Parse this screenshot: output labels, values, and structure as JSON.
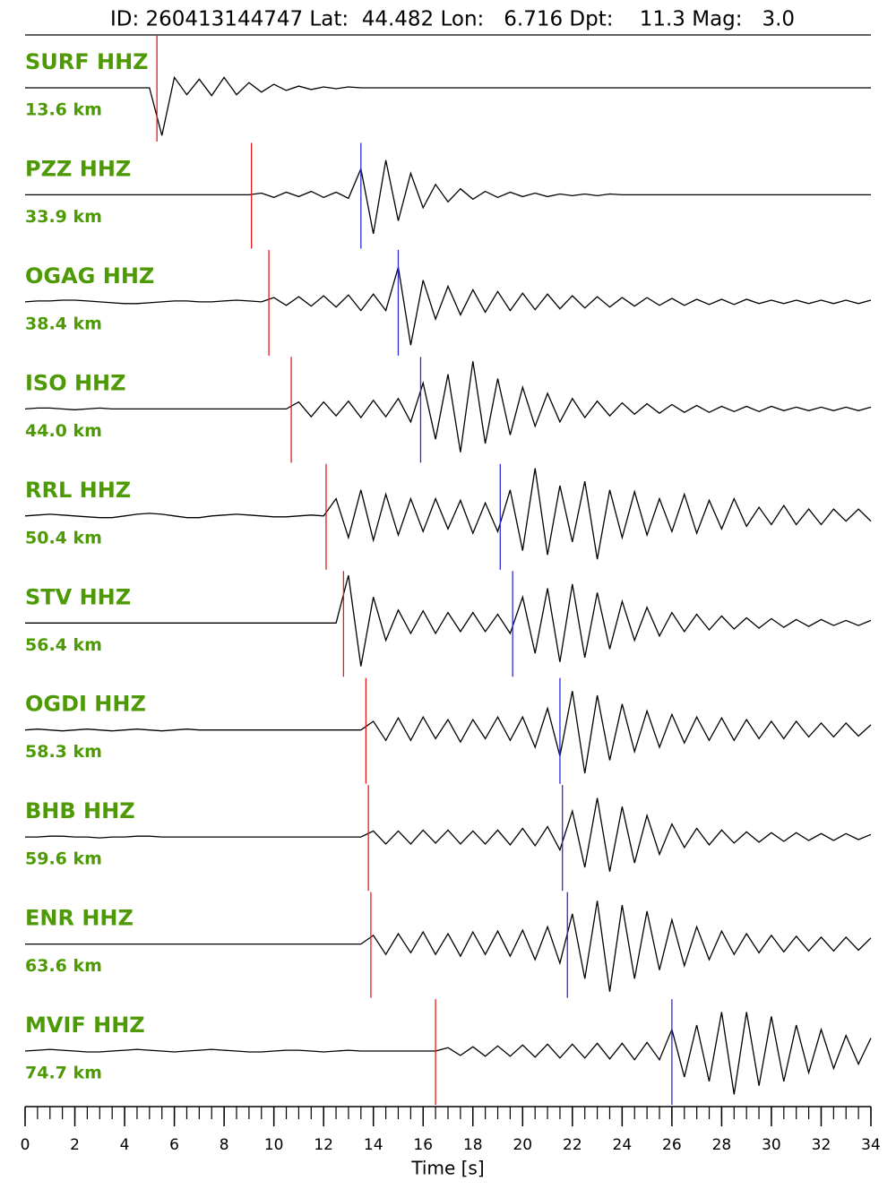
{
  "chart_data": {
    "type": "seismogram",
    "title": "ID: 260413144747 Lat:  44.482 Lon:   6.716 Dpt:    11.3 Mag:   3.0",
    "xlabel": "Time [s]",
    "xlim": [
      0,
      34
    ],
    "xticks": [
      0,
      2,
      4,
      6,
      8,
      10,
      12,
      14,
      16,
      18,
      20,
      22,
      24,
      26,
      28,
      30,
      32,
      34
    ],
    "xminorticks": [
      0,
      0.5,
      1,
      1.5,
      2,
      2.5,
      3,
      3.5,
      4,
      4.5,
      5,
      5.5,
      6,
      6.5,
      7,
      7.5,
      8,
      8.5,
      9,
      9.5,
      10,
      10.5,
      11,
      11.5,
      12,
      12.5,
      13,
      13.5,
      14,
      14.5,
      15,
      15.5,
      16,
      16.5,
      17,
      17.5,
      18,
      18.5,
      19,
      19.5,
      20,
      20.5,
      21,
      21.5,
      22,
      22.5,
      23,
      23.5,
      24,
      24.5,
      25,
      25.5,
      26,
      26.5,
      27,
      27.5,
      28,
      28.5,
      29,
      29.5,
      30,
      30.5,
      31,
      31.5,
      32,
      32.5,
      33,
      33.5,
      34
    ],
    "x": [
      0,
      0.5,
      1,
      1.5,
      2,
      2.5,
      3,
      3.5,
      4,
      4.5,
      5,
      5.5,
      6,
      6.5,
      7,
      7.5,
      8,
      8.5,
      9,
      9.5,
      10,
      10.5,
      11,
      11.5,
      12,
      12.5,
      13,
      13.5,
      14,
      14.5,
      15,
      15.5,
      16,
      16.5,
      17,
      17.5,
      18,
      18.5,
      19,
      19.5,
      20,
      20.5,
      21,
      21.5,
      22,
      22.5,
      23,
      23.5,
      24,
      24.5,
      25,
      25.5,
      26,
      26.5,
      27,
      27.5,
      28,
      28.5,
      29,
      29.5,
      30,
      30.5,
      31,
      31.5,
      32,
      32.5,
      33,
      33.5,
      34
    ],
    "ylim": [
      -60,
      60
    ],
    "trace_color": "#000000",
    "label_color": "#4e9a06",
    "p_color": "#e41a1c",
    "s_color": "#2b2bd6",
    "series": [
      {
        "name": "SURF HHZ",
        "distance": "13.6 km",
        "p_pick": 5.3,
        "values": [
          0,
          0,
          0,
          0,
          0,
          0,
          0,
          0,
          0,
          0,
          0,
          -55,
          12,
          -8,
          10,
          -9,
          12,
          -8,
          6,
          -5,
          4,
          -3,
          2,
          -2,
          1,
          -1,
          1,
          0,
          0,
          0,
          0,
          0,
          0,
          0,
          0,
          0,
          0,
          0,
          0,
          0,
          0,
          0,
          0,
          0,
          0,
          0,
          0,
          0,
          0,
          0,
          0,
          0,
          0,
          0,
          0,
          0,
          0,
          0,
          0,
          0,
          0,
          0,
          0,
          0,
          0,
          0,
          0,
          0,
          0
        ]
      },
      {
        "name": "PZZ HHZ",
        "distance": "33.9 km",
        "p_pick": 9.1,
        "s_pick": 13.5,
        "values": [
          0,
          0,
          0,
          0,
          0,
          0,
          0,
          0,
          0,
          0,
          0,
          0,
          0,
          0,
          0,
          0,
          0,
          0,
          0,
          2,
          -3,
          3,
          -2,
          4,
          -3,
          3,
          -4,
          30,
          -45,
          40,
          -30,
          25,
          -15,
          12,
          -8,
          7,
          -5,
          4,
          -3,
          3,
          -2,
          2,
          -2,
          1,
          -1,
          1,
          -1,
          1,
          0,
          0,
          0,
          0,
          0,
          0,
          0,
          0,
          0,
          0,
          0,
          0,
          0,
          0,
          0,
          0,
          0,
          0,
          0,
          0,
          0
        ]
      },
      {
        "name": "OGAG HHZ",
        "distance": "38.4 km",
        "p_pick": 9.8,
        "s_pick": 15.0,
        "values": [
          0,
          1,
          1,
          2,
          2,
          1,
          0,
          -1,
          -2,
          -2,
          -1,
          0,
          1,
          1,
          0,
          0,
          1,
          2,
          1,
          0,
          5,
          -4,
          6,
          -5,
          7,
          -6,
          8,
          -10,
          9,
          -10,
          40,
          -50,
          25,
          -20,
          18,
          -15,
          14,
          -12,
          12,
          -10,
          10,
          -9,
          9,
          -8,
          7,
          -7,
          6,
          -6,
          5,
          -5,
          5,
          -4,
          4,
          -4,
          3,
          -3,
          3,
          -3,
          3,
          -2,
          2,
          -2,
          2,
          -2,
          2,
          -2,
          2,
          -2,
          2
        ]
      },
      {
        "name": "ISO HHZ",
        "distance": "44.0 km",
        "p_pick": 10.7,
        "s_pick": 15.9,
        "values": [
          0,
          1,
          1,
          0,
          -1,
          0,
          1,
          0,
          0,
          0,
          0,
          0,
          0,
          0,
          0,
          0,
          0,
          0,
          0,
          0,
          0,
          0,
          8,
          -9,
          8,
          -8,
          9,
          -10,
          10,
          -9,
          12,
          -15,
          30,
          -35,
          40,
          -50,
          55,
          -40,
          35,
          -30,
          25,
          -20,
          18,
          -15,
          12,
          -10,
          9,
          -8,
          7,
          -6,
          6,
          -5,
          5,
          -4,
          4,
          -4,
          3,
          -3,
          3,
          -3,
          3,
          -2,
          2,
          -2,
          2,
          -2,
          2,
          -2,
          2
        ]
      },
      {
        "name": "RRL HHZ",
        "distance": "50.4 km",
        "p_pick": 12.1,
        "s_pick": 19.1,
        "values": [
          0,
          1,
          2,
          1,
          0,
          -1,
          -2,
          -2,
          0,
          2,
          3,
          2,
          0,
          -2,
          -2,
          0,
          1,
          2,
          1,
          0,
          -1,
          -1,
          0,
          1,
          0,
          20,
          -25,
          30,
          -28,
          25,
          -22,
          20,
          -18,
          20,
          -15,
          18,
          -20,
          15,
          -18,
          30,
          -40,
          55,
          -45,
          35,
          -30,
          40,
          -50,
          30,
          -25,
          28,
          -22,
          20,
          -18,
          25,
          -20,
          18,
          -15,
          20,
          -12,
          10,
          -10,
          12,
          -10,
          8,
          -10,
          8,
          -6,
          8,
          -6
        ]
      },
      {
        "name": "STV HHZ",
        "distance": "56.4 km",
        "p_pick": 12.8,
        "s_pick": 19.6,
        "values": [
          0,
          0,
          0,
          0,
          0,
          0,
          0,
          0,
          0,
          0,
          0,
          0,
          0,
          0,
          0,
          0,
          0,
          0,
          0,
          0,
          0,
          0,
          0,
          0,
          0,
          0,
          55,
          -50,
          30,
          -20,
          15,
          -12,
          14,
          -12,
          12,
          -10,
          12,
          -10,
          10,
          -12,
          30,
          -35,
          40,
          -45,
          45,
          -40,
          35,
          -30,
          25,
          -20,
          18,
          -15,
          12,
          -10,
          10,
          -8,
          8,
          -7,
          6,
          -6,
          5,
          -5,
          4,
          -4,
          4,
          -3,
          3,
          -3,
          3
        ]
      },
      {
        "name": "OGDI HHZ",
        "distance": "58.3 km",
        "p_pick": 13.7,
        "s_pick": 21.5,
        "values": [
          0,
          1,
          0,
          -1,
          0,
          1,
          0,
          -1,
          0,
          1,
          0,
          -1,
          0,
          1,
          0,
          0,
          0,
          0,
          0,
          0,
          0,
          0,
          0,
          0,
          0,
          0,
          0,
          0,
          10,
          -12,
          14,
          -12,
          15,
          -10,
          12,
          -14,
          12,
          -10,
          15,
          -12,
          15,
          -20,
          25,
          -30,
          45,
          -50,
          40,
          -35,
          30,
          -25,
          22,
          -20,
          18,
          -15,
          15,
          -12,
          14,
          -12,
          12,
          -10,
          10,
          -10,
          10,
          -8,
          8,
          -8,
          8,
          -7,
          6
        ]
      },
      {
        "name": "BHB HHZ",
        "distance": "59.6 km",
        "p_pick": 13.8,
        "s_pick": 21.6,
        "values": [
          0,
          0,
          1,
          1,
          0,
          0,
          -1,
          0,
          0,
          1,
          1,
          0,
          0,
          0,
          0,
          0,
          0,
          0,
          0,
          0,
          0,
          0,
          0,
          0,
          0,
          0,
          0,
          0,
          7,
          -8,
          7,
          -8,
          8,
          -7,
          8,
          -8,
          7,
          -8,
          8,
          -9,
          10,
          -10,
          12,
          -15,
          30,
          -35,
          45,
          -40,
          35,
          -30,
          25,
          -20,
          15,
          -12,
          10,
          -9,
          8,
          -7,
          6,
          -6,
          5,
          -5,
          5,
          -4,
          4,
          -4,
          4,
          -3,
          3
        ]
      },
      {
        "name": "ENR HHZ",
        "distance": "63.6 km",
        "p_pick": 13.9,
        "s_pick": 21.8,
        "values": [
          0,
          0,
          0,
          0,
          0,
          0,
          0,
          0,
          0,
          0,
          0,
          0,
          0,
          0,
          0,
          0,
          0,
          0,
          0,
          0,
          0,
          0,
          0,
          0,
          0,
          0,
          0,
          0,
          10,
          -12,
          12,
          -10,
          14,
          -12,
          12,
          -14,
          14,
          -12,
          15,
          -14,
          16,
          -18,
          20,
          -22,
          35,
          -40,
          50,
          -55,
          45,
          -40,
          38,
          -30,
          28,
          -25,
          20,
          -18,
          15,
          -12,
          12,
          -10,
          10,
          -9,
          9,
          -8,
          8,
          -8,
          8,
          -7,
          7
        ]
      },
      {
        "name": "MVIF HHZ",
        "distance": "74.7 km",
        "p_pick": 16.5,
        "s_pick": 26.0,
        "values": [
          0,
          1,
          2,
          1,
          0,
          -1,
          -1,
          0,
          1,
          2,
          1,
          0,
          -1,
          0,
          1,
          2,
          1,
          0,
          -1,
          -1,
          0,
          1,
          1,
          0,
          -1,
          0,
          1,
          0,
          0,
          0,
          0,
          0,
          0,
          0,
          4,
          -5,
          5,
          -6,
          6,
          -6,
          7,
          -7,
          8,
          -8,
          8,
          -8,
          9,
          -9,
          9,
          -10,
          10,
          -10,
          25,
          -30,
          30,
          -35,
          45,
          -50,
          45,
          -40,
          40,
          -35,
          30,
          -25,
          25,
          -20,
          18,
          -15,
          15
        ]
      }
    ]
  }
}
